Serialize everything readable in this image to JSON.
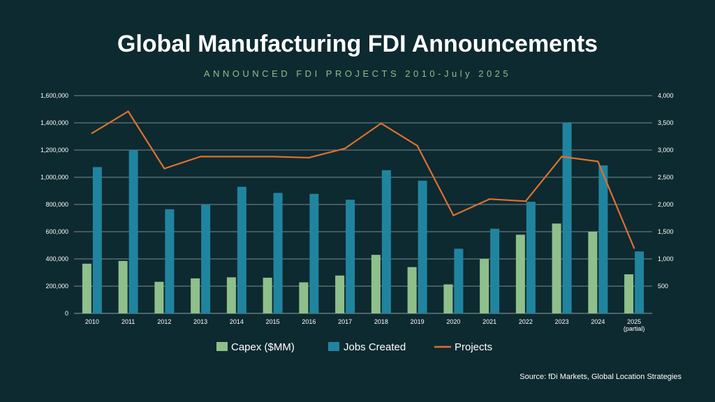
{
  "title": "Global Manufacturing FDI Announcements",
  "subtitle": "ANNOUNCED FDI PROJECTS 2010-July 2025",
  "source": "Source: fDi Markets, Global Location Strategies",
  "colors": {
    "background": "#0d2a30",
    "capex": "#8fbf8b",
    "jobs": "#21849f",
    "projects": "#e0702f",
    "grid": "#b8c4c6"
  },
  "chart_data": {
    "type": "bar",
    "categories": [
      "2010",
      "2011",
      "2012",
      "2013",
      "2014",
      "2015",
      "2016",
      "2017",
      "2018",
      "2019",
      "2020",
      "2021",
      "2022",
      "2023",
      "2024",
      "2025"
    ],
    "category_sublabels": [
      "",
      "",
      "",
      "",
      "",
      "",
      "",
      "",
      "",
      "",
      "",
      "",
      "",
      "",
      "",
      "(partial)"
    ],
    "series": [
      {
        "name": "Capex ($MM)",
        "type": "bar",
        "axis": "left",
        "values": [
          365000,
          385000,
          232000,
          257000,
          265000,
          262000,
          228000,
          278000,
          430000,
          340000,
          213000,
          400000,
          578000,
          660000,
          600000,
          287000
        ]
      },
      {
        "name": "Jobs Created",
        "type": "bar",
        "axis": "left",
        "values": [
          1075000,
          1200000,
          765000,
          800000,
          930000,
          885000,
          878000,
          835000,
          1052000,
          975000,
          475000,
          622000,
          820000,
          1400000,
          1087000,
          455000
        ]
      },
      {
        "name": "Projects",
        "type": "line",
        "axis": "right",
        "values": [
          3310,
          3710,
          2660,
          2880,
          2880,
          2880,
          2860,
          3030,
          3490,
          3080,
          1800,
          2100,
          2060,
          2880,
          2790,
          1200
        ]
      }
    ],
    "ylim_left": [
      0,
      1600000
    ],
    "yticks_left": [
      "0",
      "200,000",
      "400,000",
      "600,000",
      "800,000",
      "1,000,000",
      "1,200,000",
      "1,400,000",
      "1,600,000"
    ],
    "ylim_right": [
      0,
      4000
    ],
    "yticks_right": [
      "500",
      "1,000",
      "1,500",
      "2,000",
      "2,500",
      "3,000",
      "3,500",
      "4,000"
    ],
    "grid": true,
    "legend_position": "bottom"
  }
}
